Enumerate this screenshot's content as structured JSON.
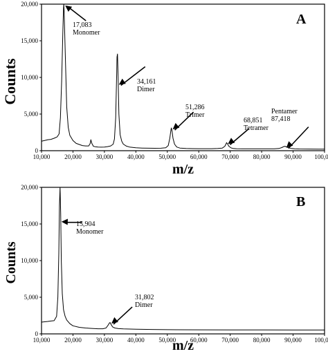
{
  "chart_data": [
    {
      "type": "line",
      "panel_label": "A",
      "title": "",
      "xlabel": "m/z",
      "ylabel": "Counts",
      "xlim": [
        10000,
        100000
      ],
      "ylim": [
        0,
        20000
      ],
      "x_ticks": [
        "10,000",
        "20,000",
        "30,000",
        "40,000",
        "50,000",
        "60,000",
        "70,000",
        "80,000",
        "90,000",
        "100,000"
      ],
      "y_ticks": [
        "0",
        "5,000",
        "10,000",
        "15,000",
        "20,000"
      ],
      "grid": false,
      "series": [
        {
          "x": [
            10000,
            11000,
            12000,
            13000,
            14000,
            15000,
            15600,
            16000,
            16400,
            16800,
            17000,
            17083,
            17200,
            17500,
            18000,
            18500,
            19000,
            20000,
            21000,
            22000,
            23000,
            24000,
            25000,
            25500,
            25700,
            26000,
            26500,
            27000,
            28000,
            29000,
            30000,
            31000,
            32000,
            32800,
            33200,
            33600,
            33900,
            34000,
            34161,
            34350,
            34600,
            35000,
            35500,
            36000,
            37000,
            38000,
            40000,
            42000,
            44000,
            46000,
            48000,
            49500,
            50300,
            50800,
            51100,
            51286,
            51500,
            51800,
            52300,
            53000,
            54000,
            56000,
            58000,
            60000,
            62000,
            64000,
            66000,
            67500,
            68300,
            68700,
            68851,
            69100,
            69600,
            70300,
            71000,
            72000,
            74000,
            76000,
            78000,
            80000,
            82000,
            84000,
            85500,
            86400,
            87000,
            87418,
            87900,
            88600,
            89500,
            90500,
            92000,
            95000,
            98000,
            100000
          ],
          "y": [
            1300,
            1400,
            1500,
            1550,
            1700,
            1900,
            2300,
            4500,
            9500,
            16500,
            19500,
            20000,
            19000,
            14000,
            6000,
            3200,
            2100,
            1400,
            1000,
            850,
            700,
            650,
            650,
            1000,
            1500,
            1000,
            600,
            550,
            500,
            480,
            500,
            560,
            650,
            900,
            1600,
            4500,
            10500,
            12800,
            13200,
            10000,
            5000,
            2200,
            1300,
            900,
            620,
            500,
            400,
            360,
            340,
            330,
            340,
            400,
            700,
            1700,
            2700,
            3100,
            2700,
            1700,
            900,
            500,
            360,
            300,
            280,
            270,
            270,
            270,
            300,
            360,
            600,
            950,
            1100,
            950,
            600,
            380,
            300,
            270,
            250,
            250,
            250,
            250,
            250,
            260,
            300,
            420,
            560,
            600,
            520,
            400,
            300,
            260,
            240,
            230,
            220,
            220
          ]
        }
      ],
      "annotations": [
        {
          "lines": [
            "17,083",
            "Monomer"
          ],
          "x": 17083,
          "y": 20000
        },
        {
          "lines": [
            "34,161",
            "Dimer"
          ],
          "x": 34161,
          "y": 9200
        },
        {
          "lines": [
            "51,286",
            "Trimer"
          ],
          "x": 51286,
          "y": 3100
        },
        {
          "lines": [
            "68,851",
            "Tetramer"
          ],
          "x": 68851,
          "y": 1100
        },
        {
          "lines": [
            "Pentamer",
            "87,418"
          ],
          "x": 87418,
          "y": 600
        }
      ]
    },
    {
      "type": "line",
      "panel_label": "B",
      "title": "",
      "xlabel": "m/z",
      "ylabel": "Counts",
      "xlim": [
        10000,
        100000
      ],
      "ylim": [
        0,
        20000
      ],
      "x_ticks": [
        "10,000",
        "20,000",
        "30,000",
        "40,000",
        "50,000",
        "60,000",
        "70,000",
        "80,000",
        "90,000",
        "100,000"
      ],
      "y_ticks": [
        "0",
        "5,000",
        "10,000",
        "15,000",
        "20,000"
      ],
      "grid": false,
      "series": [
        {
          "x": [
            10000,
            11000,
            12000,
            13000,
            14000,
            14800,
            15200,
            15500,
            15700,
            15904,
            16100,
            16300,
            16600,
            17000,
            17500,
            18000,
            19000,
            20000,
            22000,
            24000,
            26000,
            28000,
            29500,
            30500,
            31200,
            31600,
            31802,
            32100,
            32600,
            33300,
            34500,
            36000,
            40000,
            45000,
            50000,
            60000,
            70000,
            80000,
            90000,
            100000
          ],
          "y": [
            1600,
            1650,
            1700,
            1750,
            1800,
            2400,
            5000,
            11000,
            17500,
            20000,
            16500,
            10000,
            5500,
            3300,
            2400,
            1900,
            1400,
            1100,
            900,
            800,
            750,
            700,
            700,
            800,
            1200,
            1500,
            1550,
            1300,
            950,
            800,
            720,
            680,
            640,
            600,
            580,
            560,
            540,
            540,
            530,
            530
          ]
        }
      ],
      "annotations": [
        {
          "lines": [
            "15,904",
            "Monomer"
          ],
          "x": 15904,
          "y": 15500
        },
        {
          "lines": [
            "31,802",
            "Dimer"
          ],
          "x": 31802,
          "y": 1600
        }
      ]
    }
  ]
}
